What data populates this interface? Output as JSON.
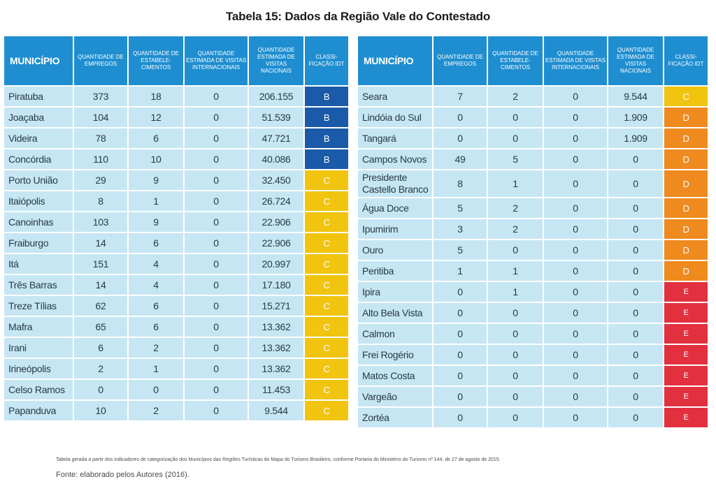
{
  "title": "Tabela 15: Dados da Região Vale do Contestado",
  "headers": {
    "municipio": "MUNICÍPIO",
    "empregos": "QUANTIDADE DE EMPREGOS",
    "estabelecimentos": "QUANTIDADE DE ESTABELE-CIMENTOS",
    "visitas_internacionais": "QUANTIDADE ESTIMADA DE VISITAS INTERNACIONAIS",
    "visitas_nacionais": "QUANTIDADE ESTIMADA DE VISITAS NACIONAIS",
    "classificacao": "CLASSI-FICAÇÃO IDT"
  },
  "left_rows": [
    {
      "municipio": "Piratuba",
      "empregos": "373",
      "estabelecimentos": "18",
      "internacionais": "0",
      "nacionais": "206.155",
      "classificacao": "B"
    },
    {
      "municipio": "Joaçaba",
      "empregos": "104",
      "estabelecimentos": "12",
      "internacionais": "0",
      "nacionais": "51.539",
      "classificacao": "B"
    },
    {
      "municipio": "Videira",
      "empregos": "78",
      "estabelecimentos": "6",
      "internacionais": "0",
      "nacionais": "47.721",
      "classificacao": "B"
    },
    {
      "municipio": "Concórdia",
      "empregos": "110",
      "estabelecimentos": "10",
      "internacionais": "0",
      "nacionais": "40.086",
      "classificacao": "B"
    },
    {
      "municipio": "Porto União",
      "empregos": "29",
      "estabelecimentos": "9",
      "internacionais": "0",
      "nacionais": "32.450",
      "classificacao": "C"
    },
    {
      "municipio": "Itaiópolis",
      "empregos": "8",
      "estabelecimentos": "1",
      "internacionais": "0",
      "nacionais": "26.724",
      "classificacao": "C"
    },
    {
      "municipio": "Canoinhas",
      "empregos": "103",
      "estabelecimentos": "9",
      "internacionais": "0",
      "nacionais": "22.906",
      "classificacao": "C"
    },
    {
      "municipio": "Fraiburgo",
      "empregos": "14",
      "estabelecimentos": "6",
      "internacionais": "0",
      "nacionais": "22.906",
      "classificacao": "C"
    },
    {
      "municipio": "Itá",
      "empregos": "151",
      "estabelecimentos": "4",
      "internacionais": "0",
      "nacionais": "20.997",
      "classificacao": "C"
    },
    {
      "municipio": "Três Barras",
      "empregos": "14",
      "estabelecimentos": "4",
      "internacionais": "0",
      "nacionais": "17.180",
      "classificacao": "C"
    },
    {
      "municipio": "Treze Tílias",
      "empregos": "62",
      "estabelecimentos": "6",
      "internacionais": "0",
      "nacionais": "15.271",
      "classificacao": "C"
    },
    {
      "municipio": "Mafra",
      "empregos": "65",
      "estabelecimentos": "6",
      "internacionais": "0",
      "nacionais": "13.362",
      "classificacao": "C"
    },
    {
      "municipio": "Irani",
      "empregos": "6",
      "estabelecimentos": "2",
      "internacionais": "0",
      "nacionais": "13.362",
      "classificacao": "C"
    },
    {
      "municipio": "Irineópolis",
      "empregos": "2",
      "estabelecimentos": "1",
      "internacionais": "0",
      "nacionais": "13.362",
      "classificacao": "C"
    },
    {
      "municipio": "Celso Ramos",
      "empregos": "0",
      "estabelecimentos": "0",
      "internacionais": "0",
      "nacionais": "11.453",
      "classificacao": "C"
    },
    {
      "municipio": "Papanduva",
      "empregos": "10",
      "estabelecimentos": "2",
      "internacionais": "0",
      "nacionais": "9.544",
      "classificacao": "C"
    }
  ],
  "right_rows": [
    {
      "municipio": "Seara",
      "empregos": "7",
      "estabelecimentos": "2",
      "internacionais": "0",
      "nacionais": "9.544",
      "classificacao": "C"
    },
    {
      "municipio": "Lindóia do Sul",
      "empregos": "0",
      "estabelecimentos": "0",
      "internacionais": "0",
      "nacionais": "1.909",
      "classificacao": "D"
    },
    {
      "municipio": "Tangará",
      "empregos": "0",
      "estabelecimentos": "0",
      "internacionais": "0",
      "nacionais": "1.909",
      "classificacao": "D"
    },
    {
      "municipio": "Campos Novos",
      "empregos": "49",
      "estabelecimentos": "5",
      "internacionais": "0",
      "nacionais": "0",
      "classificacao": "D"
    },
    {
      "municipio": "Presidente Castello Branco",
      "empregos": "8",
      "estabelecimentos": "1",
      "internacionais": "0",
      "nacionais": "0",
      "classificacao": "D"
    },
    {
      "municipio": "Água Doce",
      "empregos": "5",
      "estabelecimentos": "2",
      "internacionais": "0",
      "nacionais": "0",
      "classificacao": "D"
    },
    {
      "municipio": "Ipumirim",
      "empregos": "3",
      "estabelecimentos": "2",
      "internacionais": "0",
      "nacionais": "0",
      "classificacao": "D"
    },
    {
      "municipio": "Ouro",
      "empregos": "5",
      "estabelecimentos": "0",
      "internacionais": "0",
      "nacionais": "0",
      "classificacao": "D"
    },
    {
      "municipio": "Peritiba",
      "empregos": "1",
      "estabelecimentos": "1",
      "internacionais": "0",
      "nacionais": "0",
      "classificacao": "D"
    },
    {
      "municipio": "Ipira",
      "empregos": "0",
      "estabelecimentos": "1",
      "internacionais": "0",
      "nacionais": "0",
      "classificacao": "E"
    },
    {
      "municipio": "Alto Bela Vista",
      "empregos": "0",
      "estabelecimentos": "0",
      "internacionais": "0",
      "nacionais": "0",
      "classificacao": "E"
    },
    {
      "municipio": "Calmon",
      "empregos": "0",
      "estabelecimentos": "0",
      "internacionais": "0",
      "nacionais": "0",
      "classificacao": "E"
    },
    {
      "municipio": "Frei Rogério",
      "empregos": "0",
      "estabelecimentos": "0",
      "internacionais": "0",
      "nacionais": "0",
      "classificacao": "E"
    },
    {
      "municipio": "Matos Costa",
      "empregos": "0",
      "estabelecimentos": "0",
      "internacionais": "0",
      "nacionais": "0",
      "classificacao": "E"
    },
    {
      "municipio": "Vargeão",
      "empregos": "0",
      "estabelecimentos": "0",
      "internacionais": "0",
      "nacionais": "0",
      "classificacao": "E"
    },
    {
      "municipio": "Zortéa",
      "empregos": "0",
      "estabelecimentos": "0",
      "internacionais": "0",
      "nacionais": "0",
      "classificacao": "E"
    }
  ],
  "colors": {
    "header": "#1f8ed0",
    "cell": "#c6e6f4",
    "class_B": "#1a5aa8",
    "class_C": "#f1c40f",
    "class_D": "#ef8a1e",
    "class_E": "#e2303f"
  },
  "footnote": "Tabela gerada a partir dos indicadores de categorização dos Municípios das Regiões Turísticas do Mapa do Turismo Brasileiro, conforme Portaria do Ministério do Turismo nº 144, de 27 de agosto de 2015.",
  "source": "Fonte: elaborado pelos Autores (2016)."
}
